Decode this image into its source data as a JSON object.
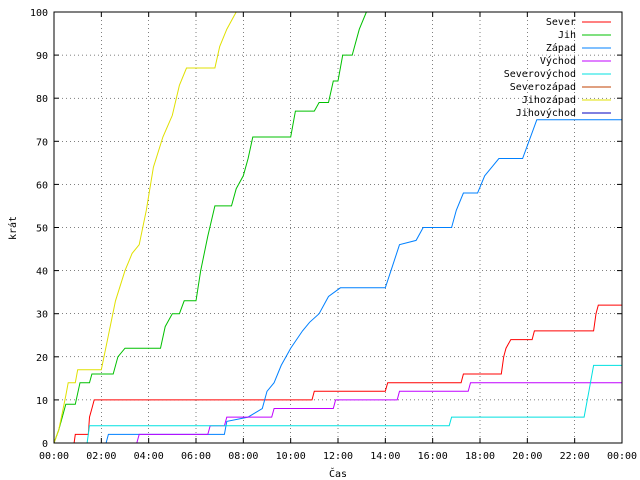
{
  "chart_data": {
    "type": "line",
    "title": "",
    "xlabel": "Čas",
    "ylabel": "krát",
    "xlim": [
      0,
      24
    ],
    "ylim": [
      0,
      100
    ],
    "x_ticks": [
      "00:00",
      "02:00",
      "04:00",
      "06:00",
      "08:00",
      "10:00",
      "12:00",
      "14:00",
      "16:00",
      "18:00",
      "20:00",
      "22:00",
      "00:00"
    ],
    "y_ticks": [
      "0",
      "10",
      "20",
      "30",
      "40",
      "50",
      "60",
      "70",
      "80",
      "90",
      "100"
    ],
    "grid": true,
    "legend_position": "top-right",
    "series": [
      {
        "name": "Sever",
        "color": "#ff0000",
        "points": [
          [
            0.85,
            0
          ],
          [
            0.9,
            2
          ],
          [
            1.45,
            2
          ],
          [
            1.5,
            6
          ],
          [
            1.6,
            8
          ],
          [
            1.7,
            10
          ],
          [
            10.9,
            10
          ],
          [
            11.0,
            12
          ],
          [
            14.0,
            12
          ],
          [
            14.1,
            14
          ],
          [
            17.2,
            14
          ],
          [
            17.3,
            16
          ],
          [
            18.9,
            16
          ],
          [
            19.0,
            20
          ],
          [
            19.1,
            22
          ],
          [
            19.3,
            24
          ],
          [
            20.2,
            24
          ],
          [
            20.3,
            26
          ],
          [
            22.8,
            26
          ],
          [
            22.9,
            30
          ],
          [
            23.0,
            32
          ],
          [
            24.0,
            32
          ]
        ]
      },
      {
        "name": "Jih",
        "color": "#00c000",
        "points": [
          [
            0.0,
            0
          ],
          [
            0.2,
            3
          ],
          [
            0.35,
            6
          ],
          [
            0.5,
            9
          ],
          [
            0.9,
            9
          ],
          [
            1.1,
            14
          ],
          [
            1.5,
            14
          ],
          [
            1.6,
            16
          ],
          [
            2.5,
            16
          ],
          [
            2.7,
            20
          ],
          [
            3.0,
            22
          ],
          [
            4.5,
            22
          ],
          [
            4.7,
            27
          ],
          [
            5.0,
            30
          ],
          [
            5.3,
            30
          ],
          [
            5.5,
            33
          ],
          [
            6.0,
            33
          ],
          [
            6.2,
            40
          ],
          [
            6.5,
            48
          ],
          [
            6.8,
            55
          ],
          [
            7.5,
            55
          ],
          [
            7.7,
            59
          ],
          [
            8.0,
            62
          ],
          [
            8.2,
            66
          ],
          [
            8.4,
            71
          ],
          [
            10.0,
            71
          ],
          [
            10.2,
            77
          ],
          [
            11.0,
            77
          ],
          [
            11.2,
            79
          ],
          [
            11.6,
            79
          ],
          [
            11.8,
            84
          ],
          [
            12.0,
            84
          ],
          [
            12.2,
            90
          ],
          [
            12.6,
            90
          ],
          [
            12.9,
            96
          ],
          [
            13.2,
            100
          ]
        ]
      },
      {
        "name": "Západ",
        "color": "#0080ff",
        "points": [
          [
            0.0,
            0
          ],
          [
            2.2,
            0
          ],
          [
            2.3,
            2
          ],
          [
            7.2,
            2
          ],
          [
            7.3,
            5
          ],
          [
            8.2,
            6
          ],
          [
            8.5,
            7
          ],
          [
            8.8,
            8
          ],
          [
            9.0,
            12
          ],
          [
            9.3,
            14
          ],
          [
            9.6,
            18
          ],
          [
            10.0,
            22
          ],
          [
            10.5,
            26
          ],
          [
            10.8,
            28
          ],
          [
            11.2,
            30
          ],
          [
            11.6,
            34
          ],
          [
            12.1,
            36
          ],
          [
            14.0,
            36
          ],
          [
            14.3,
            41
          ],
          [
            14.6,
            46
          ],
          [
            15.3,
            47
          ],
          [
            15.6,
            50
          ],
          [
            16.8,
            50
          ],
          [
            17.0,
            54
          ],
          [
            17.3,
            58
          ],
          [
            17.9,
            58
          ],
          [
            18.2,
            62
          ],
          [
            18.5,
            64
          ],
          [
            18.8,
            66
          ],
          [
            19.8,
            66
          ],
          [
            20.2,
            72
          ],
          [
            20.4,
            75
          ],
          [
            24.0,
            75
          ]
        ]
      },
      {
        "name": "Východ",
        "color": "#c000ff",
        "points": [
          [
            0.0,
            0
          ],
          [
            3.5,
            0
          ],
          [
            3.6,
            2
          ],
          [
            6.5,
            2
          ],
          [
            6.6,
            4
          ],
          [
            7.2,
            4
          ],
          [
            7.3,
            6
          ],
          [
            9.2,
            6
          ],
          [
            9.3,
            8
          ],
          [
            11.8,
            8
          ],
          [
            11.9,
            10
          ],
          [
            14.5,
            10
          ],
          [
            14.6,
            12
          ],
          [
            17.5,
            12
          ],
          [
            17.6,
            14
          ],
          [
            24.0,
            14
          ]
        ]
      },
      {
        "name": "Severovýchod",
        "color": "#00e0e0",
        "points": [
          [
            0.0,
            0
          ],
          [
            1.4,
            0
          ],
          [
            1.5,
            4
          ],
          [
            16.7,
            4
          ],
          [
            16.8,
            6
          ],
          [
            22.4,
            6
          ],
          [
            22.6,
            12
          ],
          [
            22.8,
            18
          ],
          [
            24.0,
            18
          ]
        ]
      },
      {
        "name": "Severozápad",
        "color": "#c04000",
        "points": []
      },
      {
        "name": "Jihozápad",
        "color": "#e0e000",
        "points": [
          [
            0.0,
            0
          ],
          [
            0.2,
            3
          ],
          [
            0.35,
            7
          ],
          [
            0.5,
            11
          ],
          [
            0.6,
            14
          ],
          [
            0.9,
            14
          ],
          [
            1.0,
            17
          ],
          [
            2.0,
            17
          ],
          [
            2.3,
            25
          ],
          [
            2.6,
            33
          ],
          [
            3.0,
            40
          ],
          [
            3.3,
            44
          ],
          [
            3.6,
            46
          ],
          [
            3.9,
            54
          ],
          [
            4.2,
            64
          ],
          [
            4.6,
            71
          ],
          [
            5.0,
            76
          ],
          [
            5.3,
            83
          ],
          [
            5.6,
            87
          ],
          [
            6.8,
            87
          ],
          [
            7.0,
            92
          ],
          [
            7.3,
            96
          ],
          [
            7.7,
            100
          ]
        ]
      },
      {
        "name": "Jihovýchod",
        "color": "#0000c0",
        "points": []
      }
    ]
  }
}
